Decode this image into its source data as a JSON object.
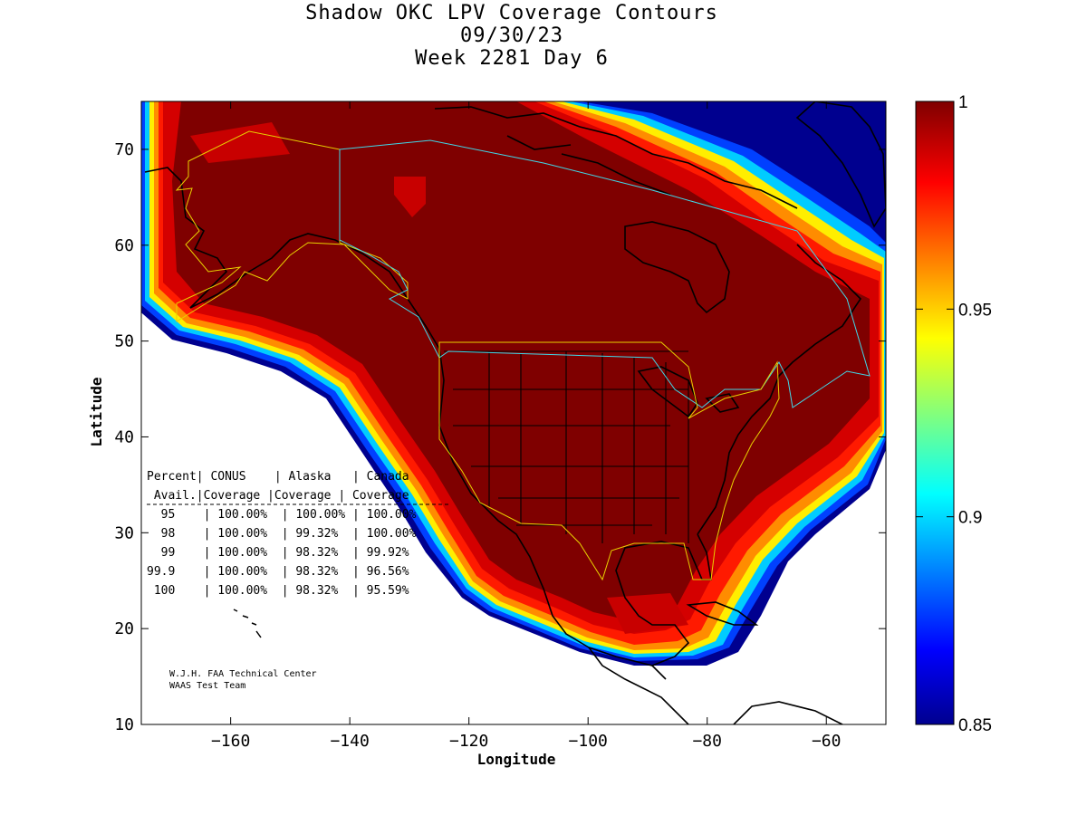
{
  "header": {
    "title": "Shadow OKC LPV Coverage Contours",
    "date": "09/30/23",
    "week": "Week 2281 Day 6"
  },
  "axes": {
    "xlabel": "Longitude",
    "ylabel": "Latitude",
    "xlim": [
      -175,
      -50
    ],
    "ylim": [
      10,
      75
    ],
    "xticks": [
      -160,
      -140,
      -120,
      -100,
      -80,
      -60
    ],
    "yticks": [
      10,
      20,
      30,
      40,
      50,
      60,
      70
    ]
  },
  "colorbar": {
    "min": 0.85,
    "max": 1,
    "ticks": [
      "1",
      "0.95",
      "0.9",
      "0.85"
    ],
    "colormap": "jet"
  },
  "table": {
    "header1": "Percent| CONUS    | Alaska   | Canada",
    "header2": " Avail.|Coverage |Coverage | Coverage",
    "rows": [
      "  95    | 100.00%  | 100.00% | 100.00%",
      "  98    | 100.00%  | 99.32%  | 100.00%",
      "  99    | 100.00%  | 98.32%  | 99.92%",
      "99.9    | 100.00%  | 98.32%  | 96.56%",
      " 100    | 100.00%  | 98.32%  | 95.59%"
    ]
  },
  "credit": {
    "line1": "W.J.H. FAA Technical Center",
    "line2": "WAAS Test Team"
  },
  "colors": {
    "core": "#7f0000",
    "red": "#d40000",
    "bright_red": "#ff1a00",
    "orange": "#ff8c00",
    "yellow": "#ffee00",
    "cyan": "#00ccff",
    "blue": "#0040ff",
    "navy": "#00008f",
    "alaska_boundary": "#e8d000",
    "canada_boundary": "#40d8e8"
  }
}
